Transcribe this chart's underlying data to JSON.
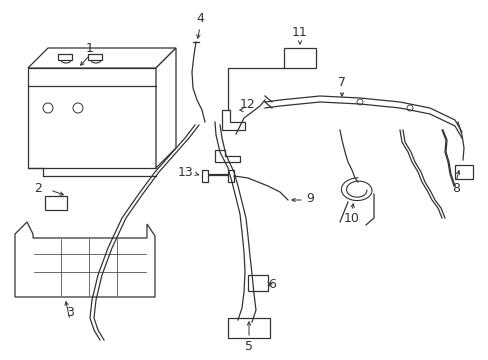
{
  "bg_color": "#ffffff",
  "lc": "#333333",
  "lw": 0.9,
  "figsize": [
    4.89,
    3.6
  ],
  "dpi": 100,
  "xlim": [
    0,
    489
  ],
  "ylim": [
    0,
    360
  ]
}
